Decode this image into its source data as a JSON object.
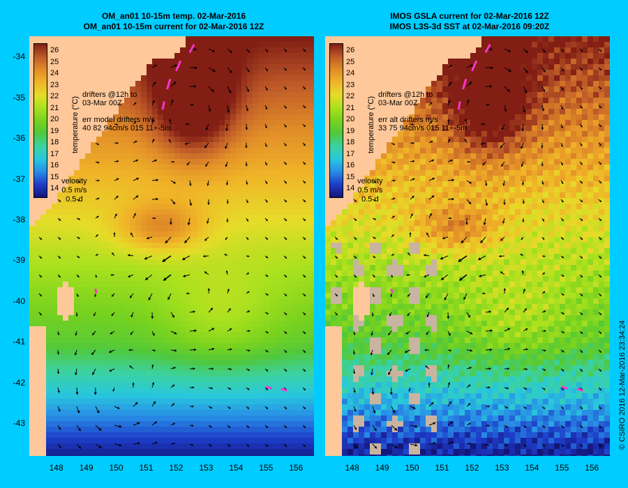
{
  "panels": [
    {
      "title1": "OM_an01 10-15m temp. 02-Mar-2016",
      "title2": "OM_an01 10-15m current for 02-Mar-2016 12Z",
      "legend_drifters": "drifters @12h to\n03-Mar 00Z",
      "legend_err": "err model drifters m/s\n40 82 94cm/s 015 11+-5m",
      "velocity_label": "velocity",
      "velocity_scale": "0.5 m/s",
      "velocity_time": "0.5 d"
    },
    {
      "title1": "IMOS GSLA current for 02-Mar-2016 12Z",
      "title2": "IMOS L3S-3d SST at 02-Mar-2016 09:20Z",
      "legend_drifters": "drifters @12h to\n03-Mar 00Z",
      "legend_err": "err alt drifters m/s\n33 75 94cm/s 015 11+-5m",
      "velocity_label": "velocity",
      "velocity_scale": "0.5 m/s",
      "velocity_time": "0.5 d"
    }
  ],
  "colorbar": {
    "title": "temperature (°C)",
    "ticks": [
      "26",
      "25",
      "24",
      "23",
      "22",
      "21",
      "20",
      "19",
      "18",
      "17",
      "16",
      "15",
      "14"
    ]
  },
  "credit": "© CSIRO 2016   12-Mar-2016 23:34:24",
  "chart_data": {
    "type": "heatmap",
    "title": "",
    "xlabel": "",
    "ylabel": "",
    "x_ticks": [
      "148",
      "149",
      "150",
      "151",
      "152",
      "153",
      "154",
      "155",
      "156"
    ],
    "y_ticks": [
      "-34",
      "-35",
      "-36",
      "-37",
      "-38",
      "-39",
      "-40",
      "-41",
      "-42",
      "-43"
    ],
    "xlim": [
      147.1,
      156.6
    ],
    "ylim": [
      -43.8,
      -33.5
    ],
    "value_range": [
      14,
      26
    ],
    "colors": {
      "land": "#ffc89a",
      "cloud": "#c8b4a0",
      "drifter": "#ff33cc"
    }
  }
}
